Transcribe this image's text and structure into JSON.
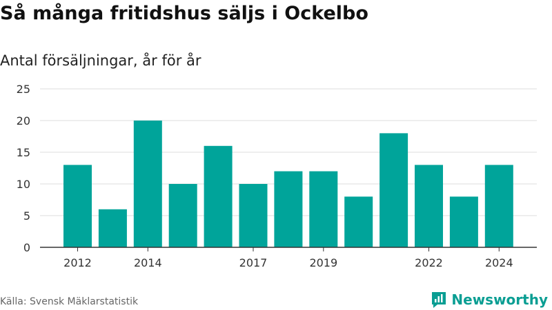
{
  "title": "Så många fritidshus säljs i Ockelbo",
  "subtitle": "Antal försäljningar, år för år",
  "source": "Källa: Svensk Mäklarstatistik",
  "brand": {
    "name": "Newsworthy",
    "icon": "bar-chart-logo-icon"
  },
  "colors": {
    "bar": "#00a49a",
    "grid": "#dddddd",
    "axis": "#333333",
    "brand": "#0a9e93"
  },
  "chart_data": {
    "type": "bar",
    "categories": [
      2012,
      2013,
      2014,
      2015,
      2016,
      2017,
      2018,
      2019,
      2020,
      2021,
      2022,
      2023,
      2024
    ],
    "values": [
      13,
      6,
      20,
      10,
      16,
      10,
      12,
      12,
      8,
      18,
      13,
      8,
      13
    ],
    "x_tick_labels": [
      "2012",
      "2014",
      "2017",
      "2019",
      "2022",
      "2024"
    ],
    "y_ticks": [
      0,
      5,
      10,
      15,
      20,
      25
    ],
    "ylim": [
      0,
      25
    ],
    "grid": true,
    "legend": "none"
  }
}
